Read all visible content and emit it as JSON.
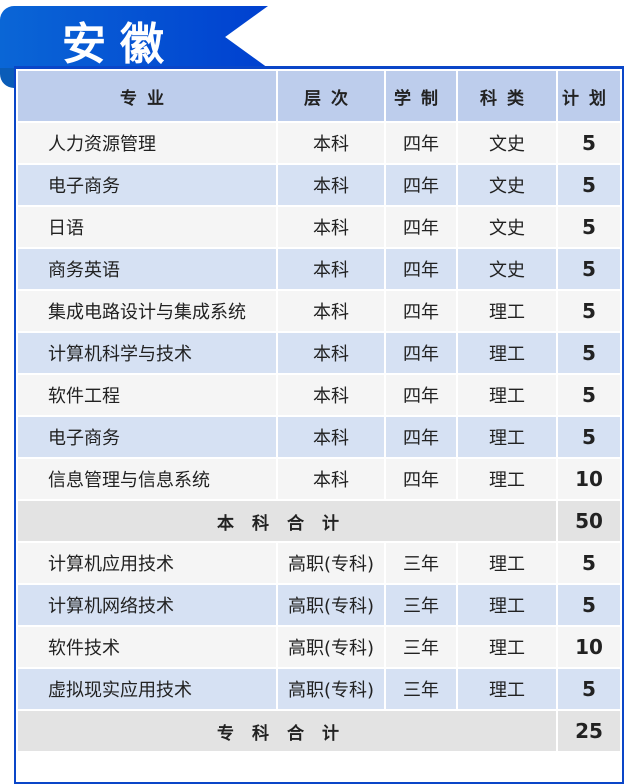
{
  "title": "安徽",
  "headers": [
    "专业",
    "层次",
    "学制",
    "科类",
    "计划"
  ],
  "rows": [
    [
      "人力资源管理",
      "本科",
      "四年",
      "文史",
      "5"
    ],
    [
      "电子商务",
      "本科",
      "四年",
      "文史",
      "5"
    ],
    [
      "日语",
      "本科",
      "四年",
      "文史",
      "5"
    ],
    [
      "商务英语",
      "本科",
      "四年",
      "文史",
      "5"
    ],
    [
      "集成电路设计与集成系统",
      "本科",
      "四年",
      "理工",
      "5"
    ],
    [
      "计算机科学与技术",
      "本科",
      "四年",
      "理工",
      "5"
    ],
    [
      "软件工程",
      "本科",
      "四年",
      "理工",
      "5"
    ],
    [
      "电子商务",
      "本科",
      "四年",
      "理工",
      "5"
    ],
    [
      "信息管理与信息系统",
      "本科",
      "四年",
      "理工",
      "10"
    ]
  ],
  "subtotal1": {
    "label": "本科合计",
    "value": "50"
  },
  "rows2": [
    [
      "计算机应用技术",
      "高职(专科)",
      "三年",
      "理工",
      "5"
    ],
    [
      "计算机网络技术",
      "高职(专科)",
      "三年",
      "理工",
      "5"
    ],
    [
      "软件技术",
      "高职(专科)",
      "三年",
      "理工",
      "10"
    ],
    [
      "虚拟现实应用技术",
      "高职(专科)",
      "三年",
      "理工",
      "5"
    ]
  ],
  "subtotal2": {
    "label": "专科合计",
    "value": "25"
  },
  "colors": {
    "accent": "#0a46c8",
    "header": "#bdcdec",
    "row_alt": "#d6e1f3"
  }
}
